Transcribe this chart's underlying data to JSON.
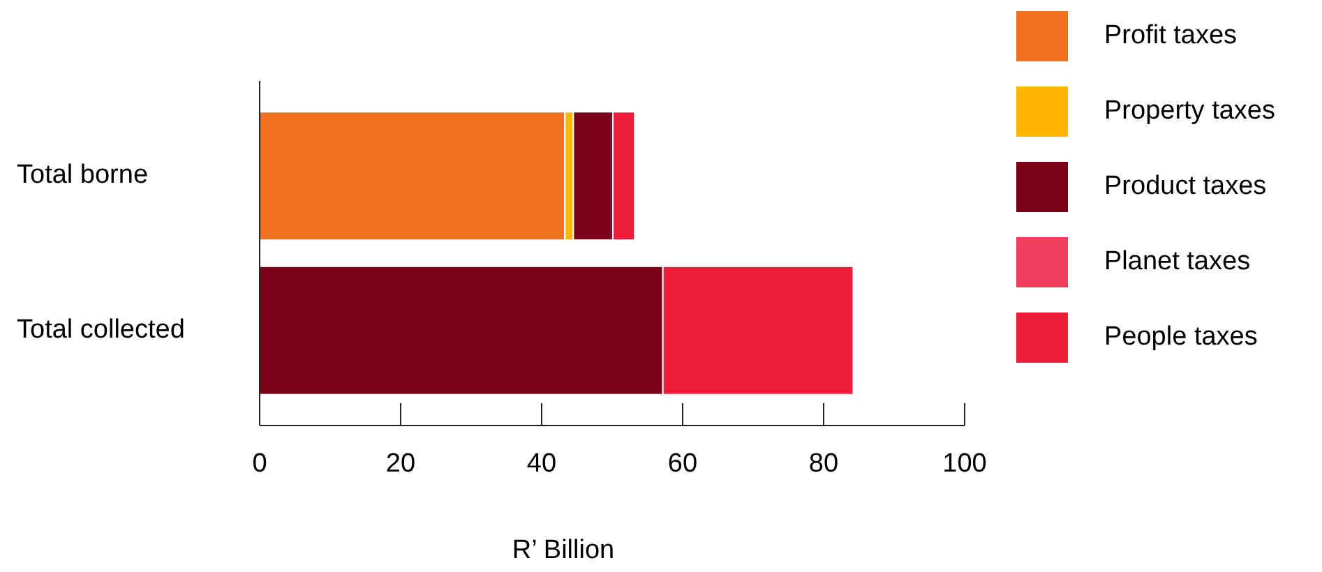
{
  "chart_data": {
    "type": "bar",
    "orientation": "horizontal",
    "stacked": true,
    "xlabel": "R’ Billion",
    "categories": [
      "Total borne",
      "Total collected"
    ],
    "series": [
      {
        "name": "Profit taxes",
        "color": "#f37021",
        "values": [
          43.3,
          0
        ]
      },
      {
        "name": "Property taxes",
        "color": "#ffb600",
        "values": [
          1.2,
          0
        ]
      },
      {
        "name": "Product taxes",
        "color": "#7d0019",
        "values": [
          5.6,
          57.2
        ]
      },
      {
        "name": "Planet taxes",
        "color": "#f0405e",
        "values": [
          0,
          0
        ]
      },
      {
        "name": "People taxes",
        "color": "#ed1c38",
        "values": [
          3.1,
          27.0
        ]
      }
    ],
    "xlim": [
      0,
      100
    ],
    "xticks": [
      0,
      20,
      40,
      60,
      80,
      100
    ],
    "legend": "right",
    "grid": false
  }
}
